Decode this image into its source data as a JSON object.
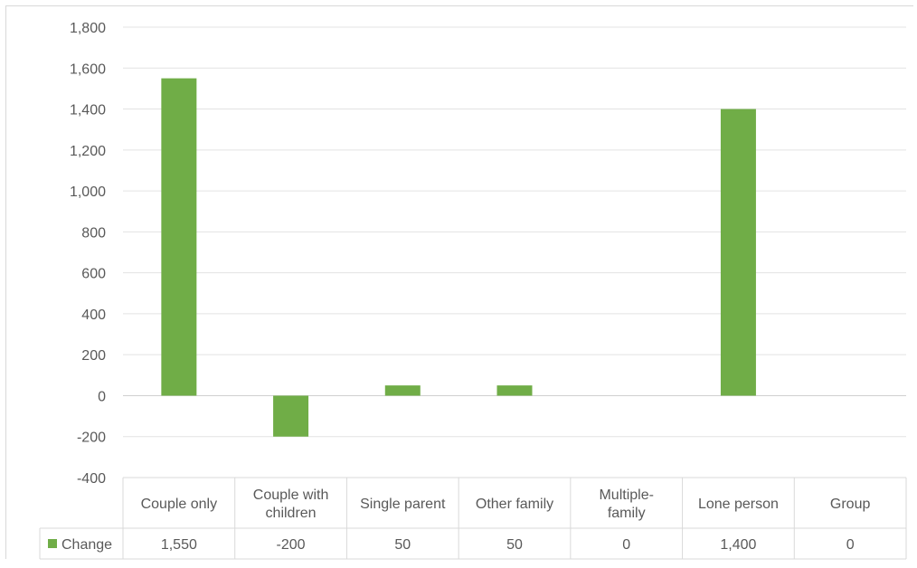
{
  "chart_data": {
    "type": "bar",
    "title": "",
    "xlabel": "",
    "ylabel": "",
    "categories": [
      [
        "Couple only"
      ],
      [
        "Couple with",
        "children"
      ],
      [
        "Single parent"
      ],
      [
        "Other family"
      ],
      [
        "Multiple-",
        "family"
      ],
      [
        "Lone person"
      ],
      [
        "Group"
      ]
    ],
    "series": [
      {
        "name": "Change",
        "color": "#70ad47",
        "values": [
          1550,
          -200,
          50,
          50,
          0,
          1400,
          0
        ],
        "labels": [
          "1,550",
          "-200",
          "50",
          "50",
          "0",
          "1,400",
          "0"
        ]
      }
    ],
    "ylim": [
      -400,
      1800
    ],
    "yticks": [
      1800,
      1600,
      1400,
      1200,
      1000,
      800,
      600,
      400,
      200,
      0,
      -200,
      -400
    ],
    "ytick_labels": [
      "1,800",
      "1,600",
      "1,400",
      "1,200",
      "1,000",
      "800",
      "600",
      "400",
      "200",
      "0",
      "-200",
      "-400"
    ],
    "grid": true,
    "legend": "data-table-left",
    "data_table": true
  }
}
